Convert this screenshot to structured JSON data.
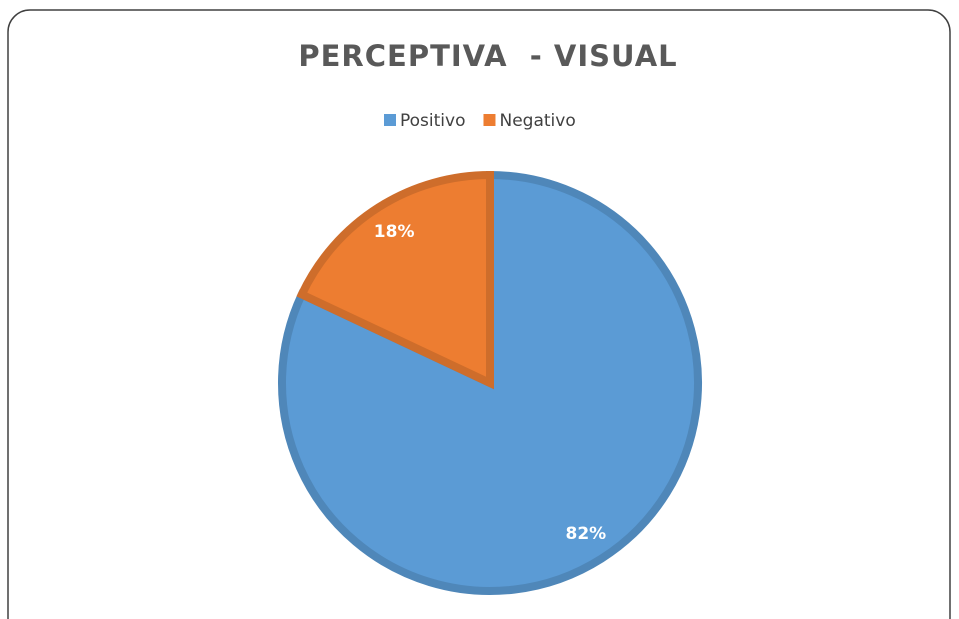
{
  "chart_data": {
    "type": "pie",
    "title": "PERCEPTIVA  - VISUAL",
    "categories": [
      "Positivo",
      "Negativo"
    ],
    "values": [
      82,
      18
    ],
    "value_labels": [
      "82%",
      "18%"
    ],
    "colors": [
      "#5b9bd5",
      "#ed7d31"
    ],
    "legend": "top"
  }
}
